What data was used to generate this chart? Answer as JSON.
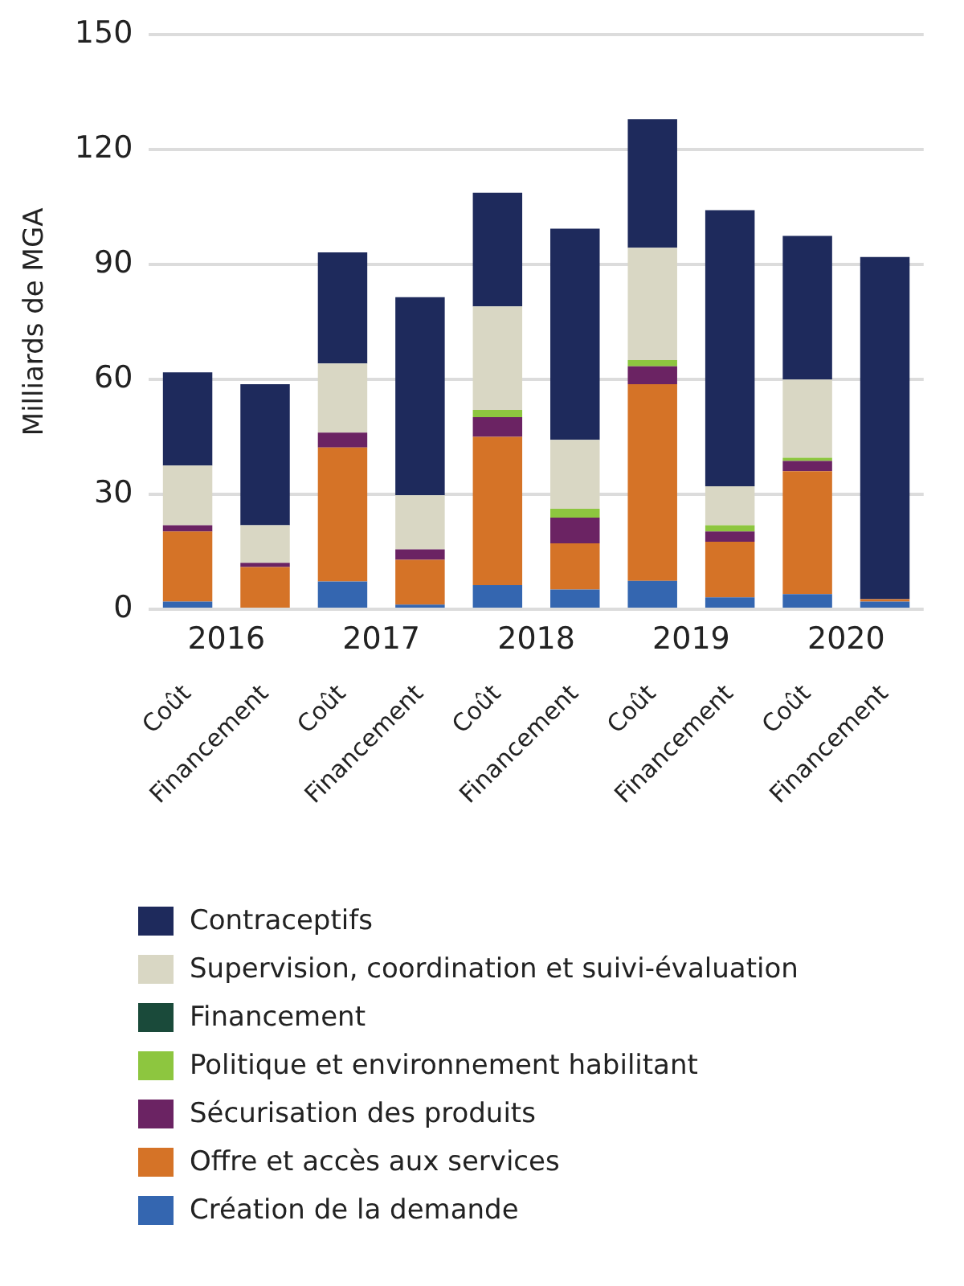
{
  "chart_data": {
    "type": "bar",
    "stacked": true,
    "ylabel": "Milliards de MGA",
    "categories": [
      "Coût",
      "Financement",
      "Coût",
      "Financement",
      "Coût",
      "Financement",
      "Coût",
      "Financement",
      "Coût",
      "Financement"
    ],
    "annotations": [
      "2016",
      "2017",
      "2018",
      "2019",
      "2020"
    ],
    "ylim": [
      0,
      150
    ],
    "yticks": [
      0,
      30,
      60,
      90,
      120,
      150
    ],
    "grid": "y",
    "legend": "bottom",
    "series": [
      {
        "name": "Création de la demande",
        "color": "#3466b0",
        "values": [
          2,
          0,
          7.2,
          1.2,
          6.3,
          5.1,
          7.4,
          3.1,
          3.9,
          2
        ]
      },
      {
        "name": "Offre et accès aux services",
        "color": "#d57327",
        "values": [
          18.3,
          11,
          35,
          11.7,
          38.7,
          12.1,
          51.3,
          14.5,
          32.1,
          0.6
        ]
      },
      {
        "name": "Sécurisation des produits",
        "color": "#6b2363",
        "values": [
          1.6,
          1.1,
          3.9,
          2.7,
          5.1,
          6.7,
          4.7,
          2.7,
          2.7,
          0
        ]
      },
      {
        "name": "Politique et environnement habilitant",
        "color": "#8dc63f",
        "values": [
          0,
          0,
          0,
          0,
          1.9,
          2.3,
          1.6,
          1.6,
          0.8,
          0
        ]
      },
      {
        "name": "Financement",
        "color": "#1a4a3a",
        "values": [
          0,
          0,
          0,
          0,
          0,
          0,
          0,
          0,
          0,
          0
        ]
      },
      {
        "name": "Supervision, coordination et suivi-évaluation",
        "color": "#d9d7c4",
        "values": [
          15.6,
          9.8,
          18,
          14.1,
          27,
          18,
          29.3,
          10.2,
          20.4,
          0
        ]
      },
      {
        "name": "Contraceptifs",
        "color": "#1e2a5c",
        "values": [
          24.3,
          36.8,
          29,
          51.7,
          29.7,
          55.1,
          33.6,
          72,
          37.5,
          89.3
        ]
      }
    ]
  }
}
